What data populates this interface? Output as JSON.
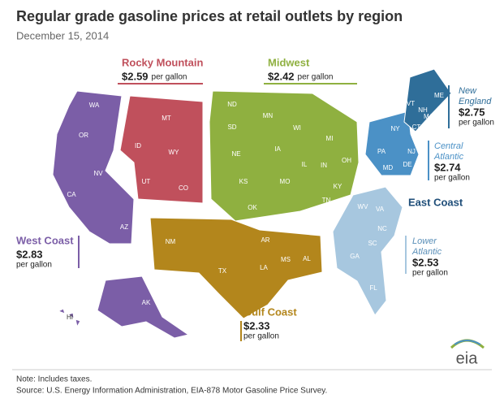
{
  "title": "Regular grade gasoline prices at retail outlets by region",
  "subtitle": "December 15, 2014",
  "regions": [
    {
      "name_lines": [
        "West Coast"
      ],
      "price": "$2.83",
      "unit": "per gallon",
      "color": "#7b5ea7"
    },
    {
      "name_lines": [
        "Rocky Mountain"
      ],
      "price": "$2.59",
      "unit": "per gallon",
      "color": "#c0505c"
    },
    {
      "name_lines": [
        "Midwest"
      ],
      "price": "$2.42",
      "unit": "per gallon",
      "color": "#8fb040"
    },
    {
      "name_lines": [
        "Gulf Coast"
      ],
      "price": "$2.33",
      "unit": "per gallon",
      "color": "#b3861c"
    },
    {
      "name_lines": [
        "New",
        "England"
      ],
      "price": "$2.75",
      "unit": "per gallon",
      "color": "#2f6e99"
    },
    {
      "name_lines": [
        "Central",
        "Atlantic"
      ],
      "price": "$2.74",
      "unit": "per gallon",
      "color": "#4b91c6"
    },
    {
      "name_lines": [
        "Lower",
        "Atlantic"
      ],
      "price": "$2.53",
      "unit": "per gallon",
      "color": "#a7c7df"
    }
  ],
  "east_coast_label": "East Coast",
  "states": [
    "WA",
    "OR",
    "CA",
    "NV",
    "AZ",
    "ID",
    "MT",
    "WY",
    "UT",
    "CO",
    "ND",
    "SD",
    "NE",
    "KS",
    "OK",
    "MN",
    "IA",
    "MO",
    "WI",
    "IL",
    "IN",
    "MI",
    "OH",
    "KY",
    "TN",
    "AR",
    "LA",
    "MS",
    "AL",
    "NM",
    "TX",
    "AK",
    "HI",
    "NY",
    "PA",
    "NJ",
    "MD",
    "DE",
    "VT",
    "NH",
    "ME",
    "MA",
    "CT",
    "RI",
    "WV",
    "VA",
    "NC",
    "SC",
    "GA",
    "FL"
  ],
  "logo": "eia",
  "notes": [
    "Note:  Includes taxes.",
    "Source:  U.S. Energy Information Administration, EIA-878 Motor Gasoline Price Survey."
  ]
}
